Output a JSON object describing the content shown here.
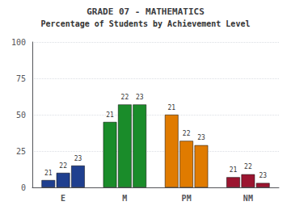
{
  "chart_data": {
    "type": "bar",
    "title": "GRADE 07 - MATHEMATICS",
    "subtitle": "Percentage of Students by Achievement Level",
    "categories": [
      "E",
      "M",
      "PM",
      "NM"
    ],
    "series": [
      {
        "name": "21",
        "values": [
          5,
          45,
          50,
          7
        ],
        "colors": [
          "#1f3f8f",
          "#1a8c2a",
          "#e07b00",
          "#9b1530"
        ]
      },
      {
        "name": "22",
        "values": [
          10,
          57,
          32,
          9
        ],
        "colors": [
          "#1f3f8f",
          "#1a8c2a",
          "#e07b00",
          "#9b1530"
        ]
      },
      {
        "name": "23",
        "values": [
          15,
          57,
          29,
          3
        ],
        "colors": [
          "#1f3f8f",
          "#1a8c2a",
          "#e07b00",
          "#9b1530"
        ]
      }
    ],
    "ylim": [
      0,
      100
    ],
    "yticks": [
      0,
      25,
      50,
      75,
      100
    ],
    "grid": true
  }
}
